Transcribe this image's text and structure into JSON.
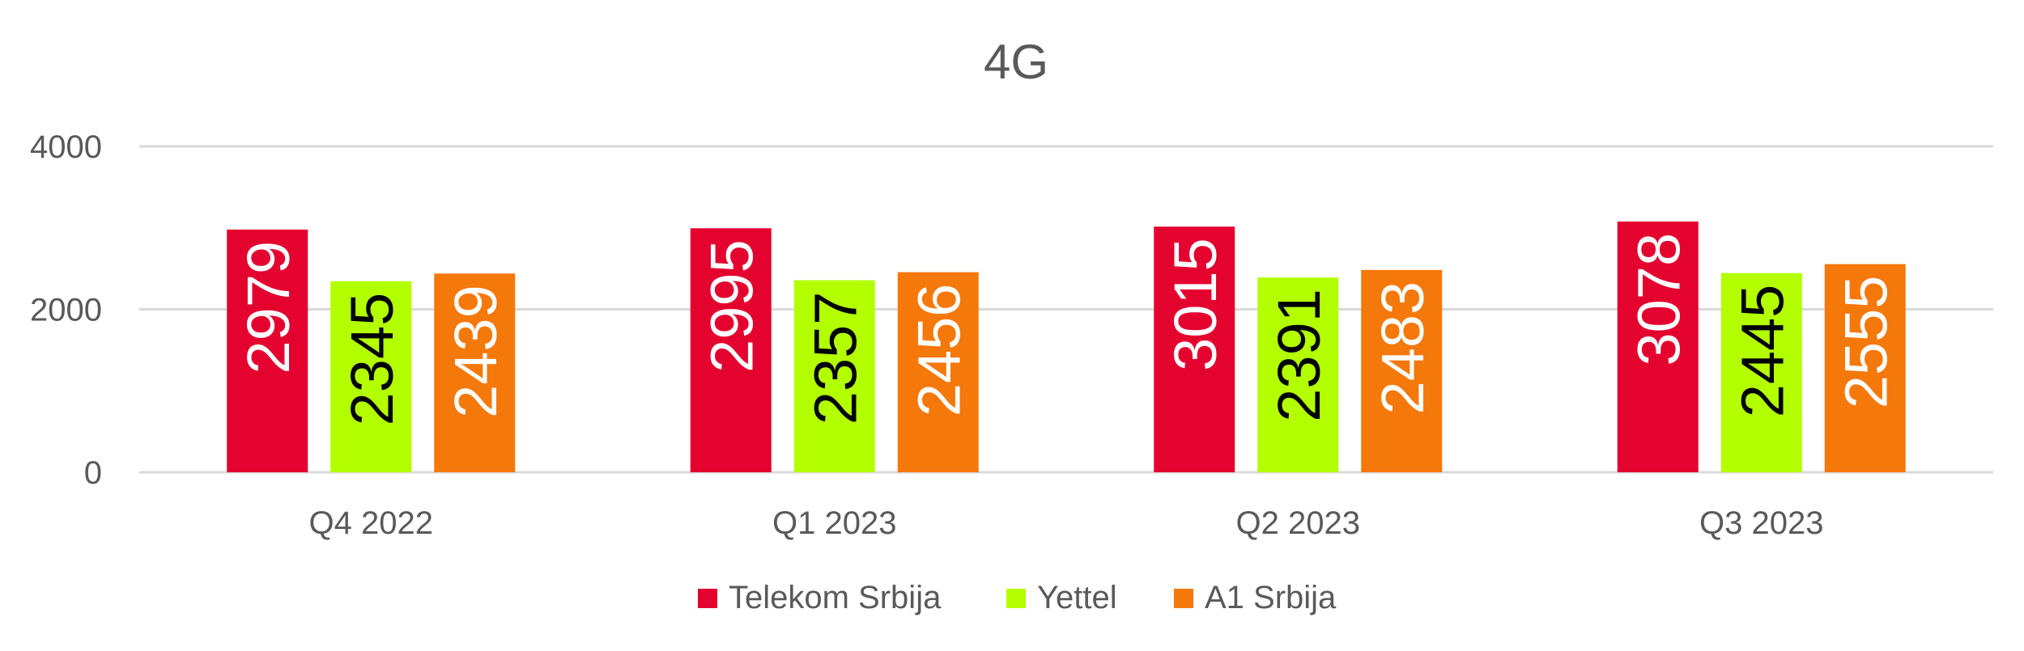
{
  "chart_data": {
    "type": "bar",
    "title": "4G",
    "categories": [
      "Q4 2022",
      "Q1 2023",
      "Q2 2023",
      "Q3 2023"
    ],
    "series": [
      {
        "name": "Telekom Srbija",
        "color": "#e4022f",
        "label_color": "#ffffff",
        "values": [
          2979,
          2995,
          3015,
          3078
        ]
      },
      {
        "name": "Yettel",
        "color": "#b3ff00",
        "label_color": "#000000",
        "values": [
          2345,
          2357,
          2391,
          2445
        ]
      },
      {
        "name": "A1 Srbija",
        "color": "#f5780a",
        "label_color": "#ffffff",
        "values": [
          2439,
          2456,
          2483,
          2555
        ]
      }
    ],
    "ylim": [
      0,
      4000
    ],
    "yticks": [
      0,
      2000,
      4000
    ],
    "grid": true,
    "legend": "bottom",
    "data_labels": "inside-end, rotated vertical"
  }
}
